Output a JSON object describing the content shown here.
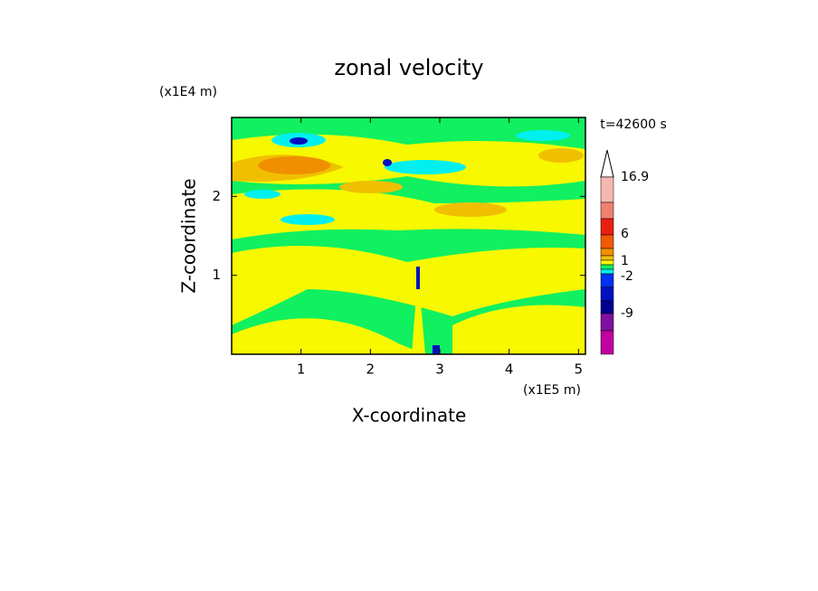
{
  "chart_data": {
    "type": "contour",
    "title": "zonal velocity",
    "x_label": "X-coordinate",
    "y_label": "Z-coordinate",
    "x_unit": "(x1E5 m)",
    "y_unit": "(x1E4 m)",
    "annotation": "t=42600 s",
    "xlim": [
      0,
      5.1
    ],
    "ylim": [
      0,
      3
    ],
    "xticks": [
      1,
      2,
      3,
      4,
      5
    ],
    "yticks": [
      1,
      2
    ],
    "colorbar": {
      "colors": [
        "#f4b8b0",
        "#f08070",
        "#e82010",
        "#f05a00",
        "#f09000",
        "#f0c000",
        "#f8f800",
        "#10f060",
        "#00f0f0",
        "#0030f0",
        "#0010c0",
        "#000090",
        "#8010a0",
        "#c000a0",
        "#ff10b0"
      ],
      "ticks": [
        16.9,
        6,
        1,
        -2,
        -9
      ]
    }
  }
}
